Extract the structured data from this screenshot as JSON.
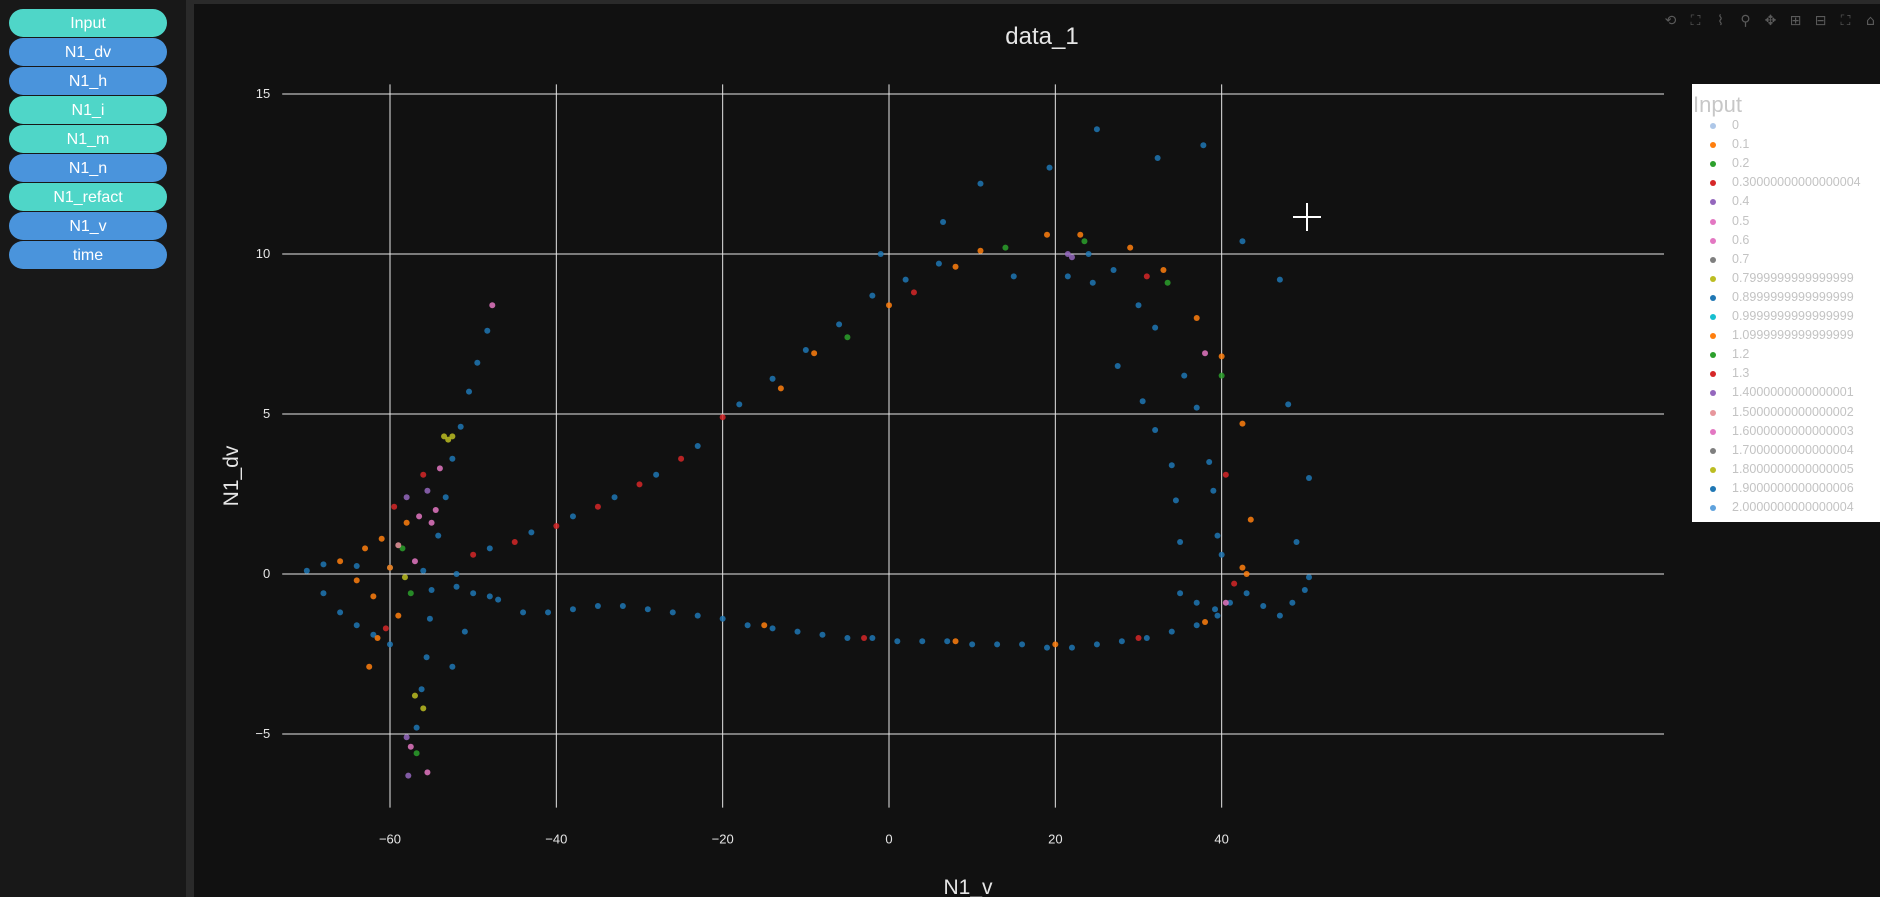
{
  "sidebar": {
    "buttons": [
      {
        "label": "Input",
        "color": "#4fd6c8"
      },
      {
        "label": "N1_dv",
        "color": "#4a94dc"
      },
      {
        "label": "N1_h",
        "color": "#4a94dc"
      },
      {
        "label": "N1_i",
        "color": "#4fd6c8"
      },
      {
        "label": "N1_m",
        "color": "#4fd6c8"
      },
      {
        "label": "N1_n",
        "color": "#4a94dc"
      },
      {
        "label": "N1_refact",
        "color": "#4fd6c8"
      },
      {
        "label": "N1_v",
        "color": "#4a94dc"
      },
      {
        "label": "time",
        "color": "#4a94dc"
      }
    ]
  },
  "modebar": [
    "reset-axes-icon",
    "autoscale-icon",
    "compare-icon",
    "zoom-icon",
    "pan-icon",
    "zoom-in-icon",
    "zoom-out-icon",
    "fullscreen-icon",
    "home-icon"
  ],
  "chart_data": {
    "type": "scatter",
    "title": "data_1",
    "xlabel": "N1_v",
    "ylabel": "N1_dv",
    "xlim": [
      -72,
      58
    ],
    "ylim": [
      -7.3,
      15.3
    ],
    "xticks": [
      -60,
      -40,
      -20,
      0,
      20,
      40
    ],
    "yticks": [
      -5,
      0,
      5,
      10,
      15
    ],
    "grid": true,
    "legend_title": "Input",
    "legend_placement": "right",
    "series": [
      {
        "name": "0",
        "color": "#aec7e8"
      },
      {
        "name": "0.1",
        "color": "#ff7f0e"
      },
      {
        "name": "0.2",
        "color": "#2ca02c"
      },
      {
        "name": "0.30000000000000004",
        "color": "#d62728"
      },
      {
        "name": "0.4",
        "color": "#9467bd"
      },
      {
        "name": "0.5",
        "color": "#e377c2"
      },
      {
        "name": "0.6",
        "color": "#e377c2"
      },
      {
        "name": "0.7",
        "color": "#7f7f7f"
      },
      {
        "name": "0.7999999999999999",
        "color": "#bcbd22"
      },
      {
        "name": "0.8999999999999999",
        "color": "#1f77b4"
      },
      {
        "name": "0.9999999999999999",
        "color": "#17becf"
      },
      {
        "name": "1.0999999999999999",
        "color": "#ff7f0e"
      },
      {
        "name": "1.2",
        "color": "#2ca02c"
      },
      {
        "name": "1.3",
        "color": "#d62728"
      },
      {
        "name": "1.4000000000000001",
        "color": "#9467bd"
      },
      {
        "name": "1.5000000000000002",
        "color": "#e7969c"
      },
      {
        "name": "1.6000000000000003",
        "color": "#e377c2"
      },
      {
        "name": "1.7000000000000004",
        "color": "#7f7f7f"
      },
      {
        "name": "1.8000000000000005",
        "color": "#bcbd22"
      },
      {
        "name": "1.9000000000000006",
        "color": "#1f77b4"
      },
      {
        "name": "2.0000000000000004",
        "color": "#5fa2dd"
      }
    ],
    "points": [
      {
        "x": -70,
        "y": 0.1,
        "s": 9
      },
      {
        "x": -68,
        "y": -0.6,
        "s": 9
      },
      {
        "x": -66,
        "y": -1.2,
        "s": 9
      },
      {
        "x": -64,
        "y": -1.6,
        "s": 9
      },
      {
        "x": -62,
        "y": -1.9,
        "s": 9
      },
      {
        "x": -60,
        "y": -2.2,
        "s": 9
      },
      {
        "x": -68,
        "y": 0.3,
        "s": 9
      },
      {
        "x": -64,
        "y": 0.25,
        "s": 9
      },
      {
        "x": -60,
        "y": 0.2,
        "s": 9
      },
      {
        "x": -56,
        "y": 0.1,
        "s": 9
      },
      {
        "x": -52,
        "y": 0.0,
        "s": 9
      },
      {
        "x": -66,
        "y": 0.4,
        "s": 1
      },
      {
        "x": -64,
        "y": -0.2,
        "s": 1
      },
      {
        "x": -63,
        "y": 0.8,
        "s": 1
      },
      {
        "x": -62,
        "y": -0.7,
        "s": 1
      },
      {
        "x": -61,
        "y": 1.1,
        "s": 1
      },
      {
        "x": -60,
        "y": 0.2,
        "s": 1
      },
      {
        "x": -59,
        "y": -1.3,
        "s": 1
      },
      {
        "x": -58,
        "y": 1.6,
        "s": 1
      },
      {
        "x": -61.5,
        "y": -2.0,
        "s": 1
      },
      {
        "x": -62.5,
        "y": -2.9,
        "s": 1
      },
      {
        "x": -60.5,
        "y": -1.7,
        "s": 3
      },
      {
        "x": -59.5,
        "y": 2.1,
        "s": 3
      },
      {
        "x": -58.5,
        "y": 0.8,
        "s": 2
      },
      {
        "x": -57.5,
        "y": -0.6,
        "s": 2
      },
      {
        "x": -58,
        "y": 2.4,
        "s": 4
      },
      {
        "x": -56.5,
        "y": 1.8,
        "s": 5
      },
      {
        "x": -57,
        "y": 0.4,
        "s": 6
      },
      {
        "x": -59,
        "y": 0.9,
        "s": 15
      },
      {
        "x": -58.2,
        "y": -0.1,
        "s": 8
      },
      {
        "x": -56,
        "y": 3.1,
        "s": 13
      },
      {
        "x": -55.5,
        "y": 2.6,
        "s": 14
      },
      {
        "x": -55,
        "y": 1.6,
        "s": 16
      },
      {
        "x": -54.5,
        "y": 2.0,
        "s": 16
      },
      {
        "x": -54,
        "y": 3.3,
        "s": 16
      },
      {
        "x": -53.5,
        "y": 4.3,
        "s": 18
      },
      {
        "x": -53,
        "y": 4.2,
        "s": 18
      },
      {
        "x": -52.5,
        "y": 4.3,
        "s": 18
      },
      {
        "x": -57,
        "y": -3.8,
        "s": 18
      },
      {
        "x": -56,
        "y": -4.2,
        "s": 8
      },
      {
        "x": -58,
        "y": -5.1,
        "s": 14
      },
      {
        "x": -57.5,
        "y": -5.4,
        "s": 5
      },
      {
        "x": -56.8,
        "y": -5.6,
        "s": 2
      },
      {
        "x": -55.5,
        "y": -6.2,
        "s": 16
      },
      {
        "x": -57.8,
        "y": -6.3,
        "s": 14
      },
      {
        "x": -47.7,
        "y": 8.4,
        "s": 16
      },
      {
        "x": -55,
        "y": -0.5,
        "s": 9
      },
      {
        "x": -55.2,
        "y": -1.4,
        "s": 9
      },
      {
        "x": -55.6,
        "y": -2.6,
        "s": 9
      },
      {
        "x": -56.2,
        "y": -3.6,
        "s": 9
      },
      {
        "x": -56.8,
        "y": -4.8,
        "s": 9
      },
      {
        "x": -54.2,
        "y": 1.2,
        "s": 9
      },
      {
        "x": -53.3,
        "y": 2.4,
        "s": 9
      },
      {
        "x": -52.5,
        "y": 3.6,
        "s": 9
      },
      {
        "x": -51.5,
        "y": 4.6,
        "s": 9
      },
      {
        "x": -50.5,
        "y": 5.7,
        "s": 9
      },
      {
        "x": -49.5,
        "y": 6.6,
        "s": 9
      },
      {
        "x": -48.3,
        "y": 7.6,
        "s": 9
      },
      {
        "x": -52,
        "y": -0.4,
        "s": 9
      },
      {
        "x": -50,
        "y": -0.6,
        "s": 9
      },
      {
        "x": -48,
        "y": -0.7,
        "s": 9
      },
      {
        "x": -51,
        "y": -1.8,
        "s": 9
      },
      {
        "x": -52.5,
        "y": -2.9,
        "s": 9
      },
      {
        "x": -50,
        "y": 0.6,
        "s": 3
      },
      {
        "x": -45,
        "y": 1.0,
        "s": 3
      },
      {
        "x": -40,
        "y": 1.5,
        "s": 3
      },
      {
        "x": -35,
        "y": 2.1,
        "s": 3
      },
      {
        "x": -30,
        "y": 2.8,
        "s": 3
      },
      {
        "x": -25,
        "y": 3.6,
        "s": 3
      },
      {
        "x": -20,
        "y": 4.9,
        "s": 3
      },
      {
        "x": -48,
        "y": 0.8,
        "s": 9
      },
      {
        "x": -43,
        "y": 1.3,
        "s": 9
      },
      {
        "x": -38,
        "y": 1.8,
        "s": 9
      },
      {
        "x": -33,
        "y": 2.4,
        "s": 9
      },
      {
        "x": -28,
        "y": 3.1,
        "s": 9
      },
      {
        "x": -23,
        "y": 4.0,
        "s": 9
      },
      {
        "x": -18,
        "y": 5.3,
        "s": 9
      },
      {
        "x": -14,
        "y": 6.1,
        "s": 9
      },
      {
        "x": -10,
        "y": 7.0,
        "s": 9
      },
      {
        "x": -6,
        "y": 7.8,
        "s": 9
      },
      {
        "x": -2,
        "y": 8.7,
        "s": 9
      },
      {
        "x": 2,
        "y": 9.2,
        "s": 9
      },
      {
        "x": 6,
        "y": 9.7,
        "s": 9
      },
      {
        "x": -13,
        "y": 5.8,
        "s": 1
      },
      {
        "x": -9,
        "y": 6.9,
        "s": 1
      },
      {
        "x": -5,
        "y": 7.4,
        "s": 2
      },
      {
        "x": 0,
        "y": 8.4,
        "s": 1
      },
      {
        "x": 3,
        "y": 8.8,
        "s": 13
      },
      {
        "x": 8,
        "y": 9.6,
        "s": 1
      },
      {
        "x": 11,
        "y": 10.1,
        "s": 1
      },
      {
        "x": 14,
        "y": 10.2,
        "s": 2
      },
      {
        "x": 19,
        "y": 10.6,
        "s": 1
      },
      {
        "x": 23,
        "y": 10.6,
        "s": 1
      },
      {
        "x": 29,
        "y": 10.2,
        "s": 1
      },
      {
        "x": 23.5,
        "y": 10.4,
        "s": 2
      },
      {
        "x": 21.5,
        "y": 10.0,
        "s": 4
      },
      {
        "x": 22,
        "y": 9.9,
        "s": 14
      },
      {
        "x": -1,
        "y": 10,
        "s": 9
      },
      {
        "x": 6.5,
        "y": 11,
        "s": 9
      },
      {
        "x": 11,
        "y": 12.2,
        "s": 9
      },
      {
        "x": 19.3,
        "y": 12.7,
        "s": 9
      },
      {
        "x": 25,
        "y": 13.9,
        "s": 9
      },
      {
        "x": 32.3,
        "y": 13,
        "s": 9
      },
      {
        "x": 37.8,
        "y": 13.4,
        "s": 9
      },
      {
        "x": 42.5,
        "y": 10.4,
        "s": 9
      },
      {
        "x": 47,
        "y": 9.2,
        "s": 9
      },
      {
        "x": 48,
        "y": 5.3,
        "s": 9
      },
      {
        "x": 50.5,
        "y": 3.0,
        "s": 9
      },
      {
        "x": 49,
        "y": 1.0,
        "s": 9
      },
      {
        "x": 40,
        "y": 6.8,
        "s": 1
      },
      {
        "x": 42.5,
        "y": 4.7,
        "s": 1
      },
      {
        "x": 40.5,
        "y": 3.1,
        "s": 13
      },
      {
        "x": 43.5,
        "y": 1.7,
        "s": 1
      },
      {
        "x": 38,
        "y": 6.9,
        "s": 16
      },
      {
        "x": 40,
        "y": 6.2,
        "s": 2
      },
      {
        "x": 33,
        "y": 9.5,
        "s": 1
      },
      {
        "x": 31,
        "y": 9.3,
        "s": 3
      },
      {
        "x": 33.5,
        "y": 9.1,
        "s": 2
      },
      {
        "x": 37,
        "y": 8.0,
        "s": 1
      },
      {
        "x": 15,
        "y": 9.3,
        "s": 9
      },
      {
        "x": 21.5,
        "y": 9.3,
        "s": 9
      },
      {
        "x": 24.5,
        "y": 9.1,
        "s": 9
      },
      {
        "x": 27,
        "y": 9.5,
        "s": 9
      },
      {
        "x": 30,
        "y": 8.4,
        "s": 9
      },
      {
        "x": 32,
        "y": 7.7,
        "s": 9
      },
      {
        "x": 27.5,
        "y": 6.5,
        "s": 9
      },
      {
        "x": 30.5,
        "y": 5.4,
        "s": 9
      },
      {
        "x": 35.5,
        "y": 6.2,
        "s": 9
      },
      {
        "x": 37,
        "y": 5.2,
        "s": 9
      },
      {
        "x": 32,
        "y": 4.5,
        "s": 9
      },
      {
        "x": 34,
        "y": 3.4,
        "s": 9
      },
      {
        "x": 34.5,
        "y": 2.3,
        "s": 9
      },
      {
        "x": 35,
        "y": 1.0,
        "s": 9
      },
      {
        "x": 38.5,
        "y": 3.5,
        "s": 9
      },
      {
        "x": 39,
        "y": 2.6,
        "s": 9
      },
      {
        "x": 39.5,
        "y": 1.2,
        "s": 9
      },
      {
        "x": 40,
        "y": 0.6,
        "s": 9
      },
      {
        "x": 35,
        "y": -0.6,
        "s": 9
      },
      {
        "x": 37,
        "y": -0.9,
        "s": 9
      },
      {
        "x": 39.2,
        "y": -1.1,
        "s": 9
      },
      {
        "x": 41,
        "y": -0.9,
        "s": 9
      },
      {
        "x": 43,
        "y": -0.6,
        "s": 9
      },
      {
        "x": 45,
        "y": -1.0,
        "s": 9
      },
      {
        "x": 47,
        "y": -1.3,
        "s": 9
      },
      {
        "x": 48.5,
        "y": -0.9,
        "s": 9
      },
      {
        "x": 50,
        "y": -0.5,
        "s": 9
      },
      {
        "x": 50.5,
        "y": -0.1,
        "s": 9
      },
      {
        "x": 42.5,
        "y": 0.2,
        "s": 1
      },
      {
        "x": 41.5,
        "y": -0.3,
        "s": 3
      },
      {
        "x": 40.5,
        "y": -0.9,
        "s": 5
      },
      {
        "x": 43,
        "y": 0.0,
        "s": 1
      },
      {
        "x": 24,
        "y": 10.0,
        "s": 9
      },
      {
        "x": -47,
        "y": -0.8,
        "s": 9
      },
      {
        "x": -44,
        "y": -1.2,
        "s": 9
      },
      {
        "x": -41,
        "y": -1.2,
        "s": 9
      },
      {
        "x": -38,
        "y": -1.1,
        "s": 9
      },
      {
        "x": -35,
        "y": -1.0,
        "s": 9
      },
      {
        "x": -32,
        "y": -1.0,
        "s": 9
      },
      {
        "x": -29,
        "y": -1.1,
        "s": 9
      },
      {
        "x": -26,
        "y": -1.2,
        "s": 9
      },
      {
        "x": -23,
        "y": -1.3,
        "s": 9
      },
      {
        "x": -20,
        "y": -1.4,
        "s": 9
      },
      {
        "x": -17,
        "y": -1.6,
        "s": 9
      },
      {
        "x": -14,
        "y": -1.7,
        "s": 9
      },
      {
        "x": -11,
        "y": -1.8,
        "s": 9
      },
      {
        "x": -8,
        "y": -1.9,
        "s": 9
      },
      {
        "x": -5,
        "y": -2.0,
        "s": 9
      },
      {
        "x": -2,
        "y": -2.0,
        "s": 9
      },
      {
        "x": 1,
        "y": -2.1,
        "s": 9
      },
      {
        "x": 4,
        "y": -2.1,
        "s": 9
      },
      {
        "x": 7,
        "y": -2.1,
        "s": 9
      },
      {
        "x": 10,
        "y": -2.2,
        "s": 9
      },
      {
        "x": 13,
        "y": -2.2,
        "s": 9
      },
      {
        "x": 16,
        "y": -2.2,
        "s": 9
      },
      {
        "x": 19,
        "y": -2.3,
        "s": 9
      },
      {
        "x": 22,
        "y": -2.3,
        "s": 9
      },
      {
        "x": 25,
        "y": -2.2,
        "s": 9
      },
      {
        "x": 28,
        "y": -2.1,
        "s": 9
      },
      {
        "x": 31,
        "y": -2.0,
        "s": 9
      },
      {
        "x": 34,
        "y": -1.8,
        "s": 9
      },
      {
        "x": 37,
        "y": -1.6,
        "s": 9
      },
      {
        "x": 39.5,
        "y": -1.3,
        "s": 9
      },
      {
        "x": -15,
        "y": -1.6,
        "s": 1
      },
      {
        "x": -3,
        "y": -2.0,
        "s": 3
      },
      {
        "x": 8,
        "y": -2.1,
        "s": 1
      },
      {
        "x": 20,
        "y": -2.2,
        "s": 1
      },
      {
        "x": 30,
        "y": -2.0,
        "s": 13
      },
      {
        "x": 38,
        "y": -1.5,
        "s": 1
      }
    ]
  }
}
